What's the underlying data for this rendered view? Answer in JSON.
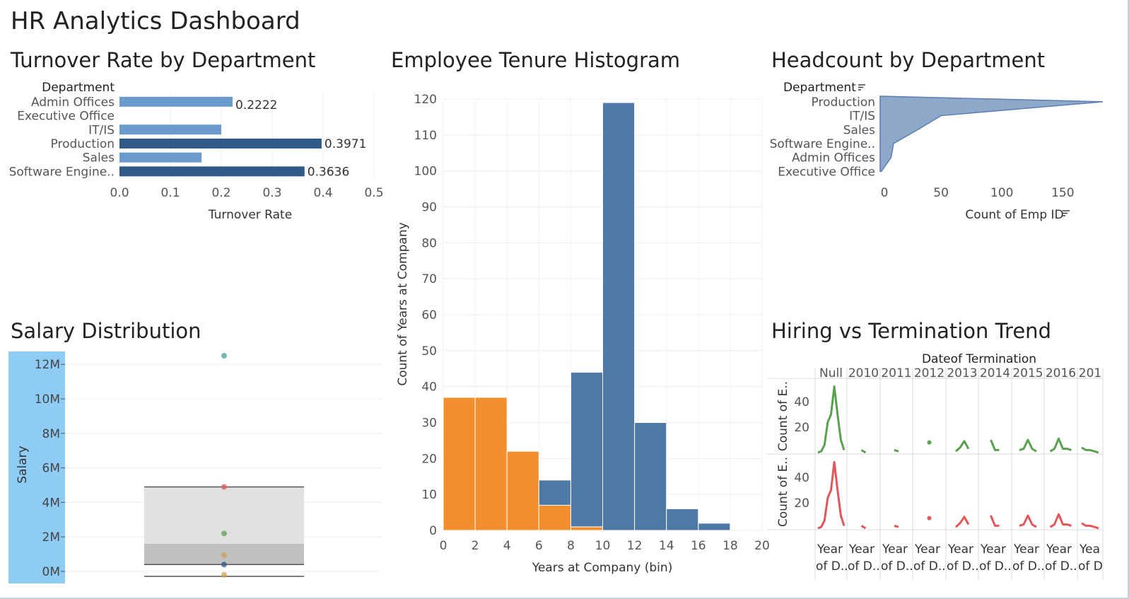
{
  "dashboard": {
    "title": "HR Analytics Dashboard"
  },
  "colors": {
    "blue_dark": "#2E5A87",
    "blue_mid": "#4E79A7",
    "blue_light": "#6B9ACC",
    "orange": "#F28E2B",
    "green": "#59A14F",
    "red": "#E15759",
    "teal": "#76B7B2",
    "salary_axis_bg": "#8FCCF5"
  },
  "chart_data": [
    {
      "id": "turnover",
      "type": "bar",
      "orientation": "horizontal",
      "title": "Turnover Rate by Department",
      "row_header": "Department",
      "xlabel": "Turnover Rate",
      "categories": [
        "Admin Offices",
        "Executive Office",
        "IT/IS",
        "Production",
        "Sales",
        "Software Engine.."
      ],
      "values": [
        0.2222,
        0,
        0.2,
        0.3971,
        0.1613,
        0.3636
      ],
      "data_labels": [
        "0.2222",
        "",
        "",
        "0.3971",
        "",
        "0.3636"
      ],
      "xlim": [
        0,
        0.5
      ],
      "xticks": [
        "0.0",
        "0.1",
        "0.2",
        "0.3",
        "0.4",
        "0.5"
      ]
    },
    {
      "id": "tenure",
      "type": "bar",
      "stacked": true,
      "title": "Employee Tenure Histogram",
      "xlabel": "Years at Company (bin)",
      "ylabel": "Count of Years at Company",
      "bins": [
        0,
        2,
        4,
        6,
        8,
        10,
        12,
        14,
        16,
        18
      ],
      "bin_width": 2,
      "series": [
        {
          "color": "orange",
          "values": [
            37,
            37,
            22,
            7,
            1,
            0,
            0,
            0,
            0,
            0
          ]
        },
        {
          "color": "blue",
          "values": [
            0,
            0,
            0,
            7,
            43,
            119,
            30,
            6,
            2,
            0
          ]
        }
      ],
      "xticks": [
        "0",
        "2",
        "4",
        "6",
        "8",
        "10",
        "12",
        "14",
        "16",
        "18",
        "20"
      ],
      "yticks": [
        "0",
        "10",
        "20",
        "30",
        "40",
        "50",
        "60",
        "70",
        "80",
        "90",
        "100",
        "110",
        "120"
      ],
      "ylim": [
        0,
        120
      ],
      "xlim": [
        0,
        20
      ]
    },
    {
      "id": "headcount",
      "type": "area",
      "title": "Headcount by Department",
      "row_header": "Department",
      "xlabel": "Count of Emp ID",
      "categories": [
        "Production",
        "IT/IS",
        "Sales",
        "Software Engine..",
        "Admin Offices",
        "Executive Office"
      ],
      "values": [
        209,
        50,
        31,
        11,
        9,
        1
      ],
      "xlim": [
        0,
        180
      ],
      "xticks": [
        "0",
        "50",
        "100",
        "150"
      ]
    },
    {
      "id": "salary",
      "type": "scatter",
      "subtype": "box-plot",
      "title": "Salary Distribution",
      "ylabel": "Salary",
      "yticks": [
        "0M",
        "2M",
        "4M",
        "6M",
        "8M",
        "10M",
        "12M"
      ],
      "ylim": [
        0,
        13
      ],
      "points": [
        {
          "y": 12.5,
          "color": "teal"
        },
        {
          "y": 4.9,
          "color": "red"
        },
        {
          "y": 2.2,
          "color": "green"
        },
        {
          "y": 0.95,
          "color": "orange"
        },
        {
          "y": 0.4,
          "color": "blue"
        },
        {
          "y": -0.2,
          "color": "orange"
        }
      ],
      "box": {
        "q1": 0.4,
        "median": 1.6,
        "q3": 4.9,
        "whisker_low": 0
      }
    },
    {
      "id": "hiring_termination",
      "type": "line",
      "title": "Hiring vs Termination Trend",
      "column_header": "Dateof Termination",
      "columns": [
        "Null",
        "2010",
        "2011",
        "2012",
        "2013",
        "2014",
        "2015",
        "2016",
        "201"
      ],
      "row_labels": [
        "Count of E..",
        "Count of E.."
      ],
      "yticks": [
        "20",
        "40"
      ],
      "ylim": [
        0,
        55
      ],
      "footer_line1": [
        "Year",
        "Year",
        "Year",
        "Year",
        "Year",
        "Year",
        "Year",
        "Year",
        "Yea"
      ],
      "footer_line2": [
        "of D..",
        "of D..",
        "of D..",
        "of D..",
        "of D..",
        "of D..",
        "of D..",
        "of D..",
        "of D"
      ],
      "series": [
        {
          "color": "green",
          "panels": [
            [
              0,
              1,
              6,
              24,
              30,
              52,
              30,
              10,
              2
            ],
            [
              2,
              0
            ],
            [
              2,
              1
            ],
            [
              8
            ],
            [
              1,
              4,
              9,
              3
            ],
            [
              10,
              2,
              2
            ],
            [
              2,
              3,
              10,
              3,
              1
            ],
            [
              1,
              3,
              11,
              3,
              3,
              2
            ],
            [
              4,
              2,
              2,
              1,
              0
            ]
          ]
        },
        {
          "color": "red",
          "panels": [
            [
              0,
              1,
              6,
              24,
              30,
              52,
              30,
              10,
              2
            ],
            [
              2,
              0
            ],
            [
              2,
              1
            ],
            [
              8
            ],
            [
              1,
              4,
              9,
              3
            ],
            [
              10,
              2,
              2
            ],
            [
              2,
              3,
              10,
              3,
              1
            ],
            [
              1,
              3,
              11,
              3,
              3,
              2
            ],
            [
              4,
              2,
              2,
              1,
              0
            ]
          ]
        }
      ]
    }
  ]
}
